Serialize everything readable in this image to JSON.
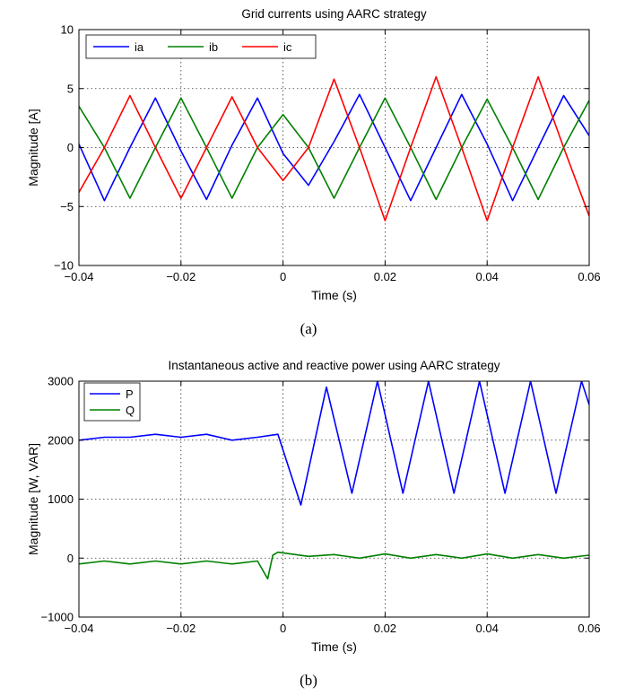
{
  "chart_data": [
    {
      "type": "line",
      "title": "Grid currents using AARC strategy",
      "xlabel": "Time (s)",
      "ylabel": "Magnitude [A]",
      "caption": "(a)",
      "xlim": [
        -0.04,
        0.06
      ],
      "ylim": [
        -10,
        10
      ],
      "xticks": [
        -0.04,
        -0.02,
        0,
        0.02,
        0.04,
        0.06
      ],
      "xtick_labels": [
        "−0.04",
        "−0.02",
        "0",
        "0.02",
        "0.04",
        "0.06"
      ],
      "yticks": [
        -10,
        -5,
        0,
        5,
        10
      ],
      "ytick_labels": [
        "−10",
        "−5",
        "0",
        "5",
        "10"
      ],
      "grid": true,
      "legend_position": "top-left",
      "legend_orientation": "horizontal",
      "series": [
        {
          "name": "ia",
          "color": "#0000ff",
          "x": [
            -0.04,
            -0.035,
            -0.03,
            -0.025,
            -0.02,
            -0.015,
            -0.01,
            -0.005,
            0,
            0.005,
            0.01,
            0.015,
            0.02,
            0.025,
            0.03,
            0.035,
            0.04,
            0.045,
            0.05,
            0.055,
            0.06
          ],
          "y": [
            0.3,
            -4.5,
            0.0,
            4.2,
            -0.3,
            -4.4,
            0.2,
            4.2,
            -0.5,
            -3.2,
            0.5,
            4.5,
            0.0,
            -4.5,
            0.0,
            4.5,
            0.3,
            -4.5,
            0.0,
            4.4,
            1.0
          ]
        },
        {
          "name": "ib",
          "color": "#008000",
          "x": [
            -0.04,
            -0.035,
            -0.03,
            -0.025,
            -0.02,
            -0.015,
            -0.01,
            -0.005,
            0,
            0.005,
            0.01,
            0.015,
            0.02,
            0.025,
            0.03,
            0.035,
            0.04,
            0.045,
            0.05,
            0.055,
            0.06
          ],
          "y": [
            3.5,
            0.0,
            -4.3,
            0.0,
            4.2,
            0.0,
            -4.3,
            0.0,
            2.8,
            0.0,
            -4.3,
            0.0,
            4.2,
            0.0,
            -4.4,
            0.0,
            4.1,
            0.0,
            -4.4,
            0.0,
            4.0
          ]
        },
        {
          "name": "ic",
          "color": "#ff0000",
          "x": [
            -0.04,
            -0.035,
            -0.03,
            -0.025,
            -0.02,
            -0.015,
            -0.01,
            -0.005,
            0,
            0.005,
            0.01,
            0.015,
            0.02,
            0.025,
            0.03,
            0.035,
            0.04,
            0.045,
            0.05,
            0.055,
            0.06
          ],
          "y": [
            -3.8,
            0.0,
            4.4,
            0.0,
            -4.3,
            0.0,
            4.3,
            0.0,
            -2.8,
            0.0,
            5.8,
            0.0,
            -6.2,
            0.0,
            6.0,
            0.0,
            -6.2,
            0.0,
            6.0,
            0.0,
            -5.8
          ]
        }
      ]
    },
    {
      "type": "line",
      "title": "Instantaneous active and reactive power using AARC strategy",
      "xlabel": "Time (s)",
      "ylabel": "Magnitude [W, VAR]",
      "caption": "(b)",
      "xlim": [
        -0.04,
        0.06
      ],
      "ylim": [
        -1000,
        3000
      ],
      "xticks": [
        -0.04,
        -0.02,
        0,
        0.02,
        0.04,
        0.06
      ],
      "xtick_labels": [
        "−0.04",
        "−0.02",
        "0",
        "0.02",
        "0.04",
        "0.06"
      ],
      "yticks": [
        -1000,
        0,
        1000,
        2000,
        3000
      ],
      "ytick_labels": [
        "−1000",
        "0",
        "1000",
        "2000",
        "3000"
      ],
      "grid": true,
      "legend_position": "top-left",
      "legend_orientation": "vertical",
      "series": [
        {
          "name": "P",
          "color": "#0000ff",
          "x": [
            -0.04,
            -0.035,
            -0.03,
            -0.025,
            -0.02,
            -0.015,
            -0.01,
            -0.005,
            -0.001,
            0.0035,
            0.0085,
            0.0135,
            0.0185,
            0.0235,
            0.0285,
            0.0335,
            0.0385,
            0.0435,
            0.0485,
            0.0535,
            0.0585,
            0.06
          ],
          "y": [
            2000,
            2050,
            2050,
            2100,
            2050,
            2100,
            2000,
            2050,
            2100,
            900,
            2900,
            1100,
            3000,
            1100,
            3000,
            1100,
            3000,
            1100,
            3000,
            1100,
            3000,
            2600
          ]
        },
        {
          "name": "Q",
          "color": "#008000",
          "x": [
            -0.04,
            -0.035,
            -0.03,
            -0.025,
            -0.02,
            -0.015,
            -0.01,
            -0.005,
            -0.003,
            -0.002,
            -0.001,
            0.005,
            0.01,
            0.015,
            0.02,
            0.025,
            0.03,
            0.035,
            0.04,
            0.045,
            0.05,
            0.055,
            0.06
          ],
          "y": [
            -100,
            -50,
            -100,
            -50,
            -100,
            -50,
            -100,
            -50,
            -350,
            50,
            100,
            30,
            60,
            0,
            70,
            0,
            60,
            0,
            70,
            0,
            60,
            0,
            50
          ]
        }
      ]
    }
  ]
}
